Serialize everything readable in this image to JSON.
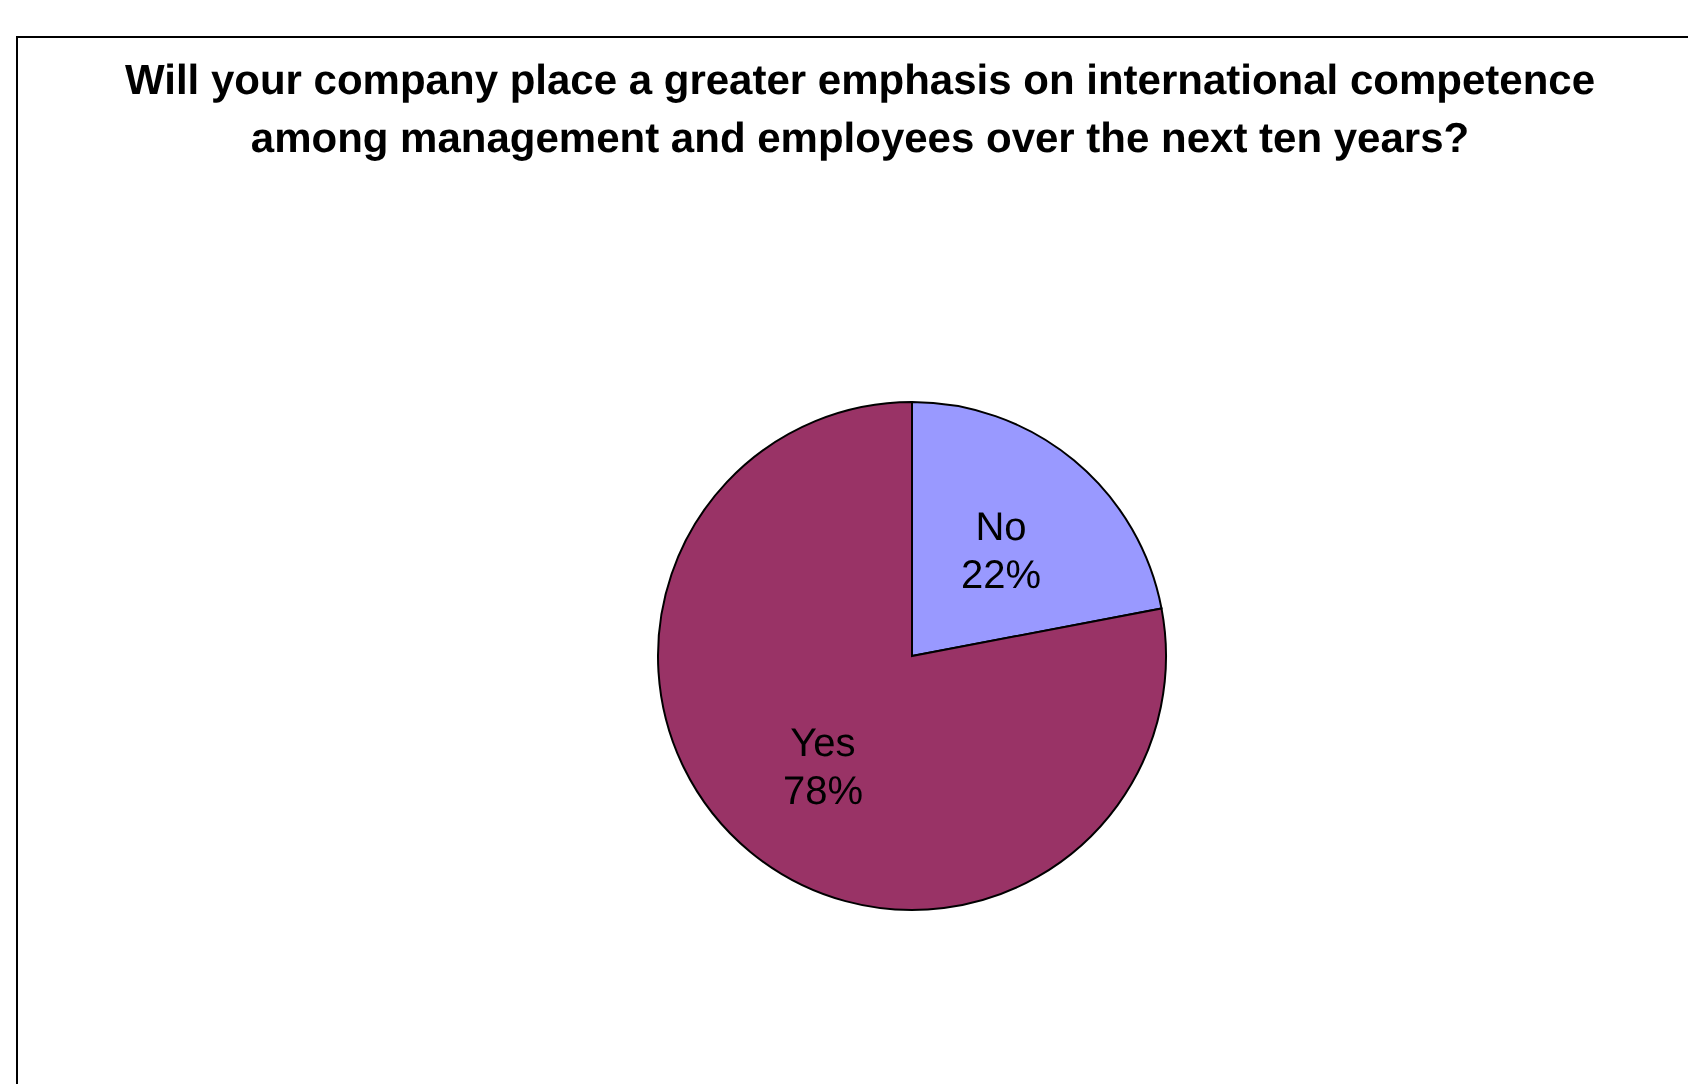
{
  "chart_data": {
    "type": "pie",
    "title": "Will your company place a greater emphasis on international competence among management and employees over the next ten years?",
    "categories": [
      "No",
      "Yes"
    ],
    "values": [
      22,
      78
    ],
    "colors": [
      "#9999ff",
      "#993366"
    ],
    "value_labels": [
      "22%",
      "78%"
    ],
    "legend": false
  }
}
